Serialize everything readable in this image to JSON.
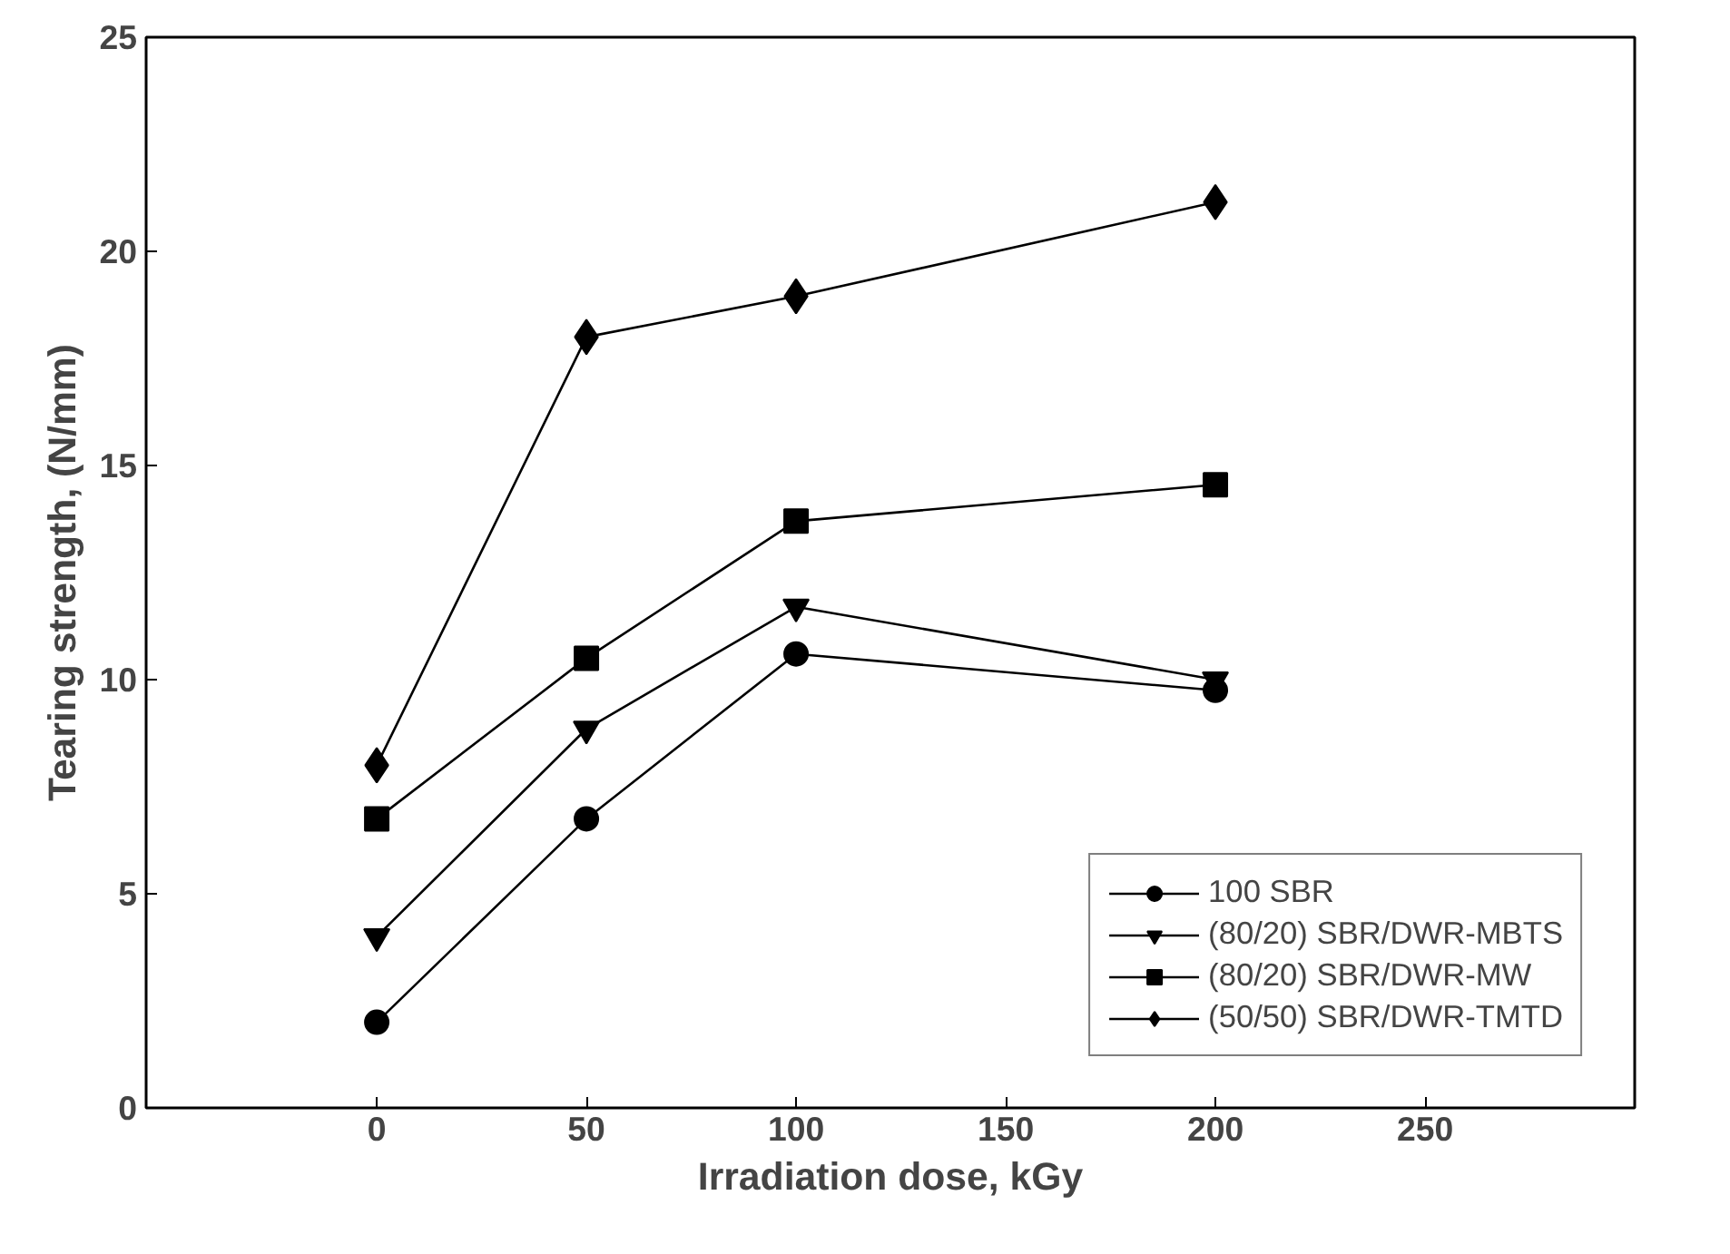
{
  "chart_data": {
    "type": "line",
    "xlabel": "Irradiation dose, kGy",
    "ylabel": "Tearing strength, (N/mm)",
    "x": [
      0,
      50,
      100,
      200
    ],
    "series": [
      {
        "name": "100 SBR",
        "color": "#000000",
        "marker": "circle",
        "values": [
          2.0,
          6.75,
          10.6,
          9.75
        ]
      },
      {
        "name": "(80/20) SBR/DWR-MBTS",
        "color": "#000000",
        "marker": "triangle",
        "values": [
          4.0,
          8.85,
          11.7,
          10.0
        ]
      },
      {
        "name": "(80/20) SBR/DWR-MW",
        "color": "#000000",
        "marker": "square",
        "values": [
          6.75,
          10.5,
          13.7,
          14.55
        ]
      },
      {
        "name": "(50/50) SBR/DWR-TMTD",
        "color": "#000000",
        "marker": "diamond",
        "values": [
          8.0,
          18.0,
          18.95,
          21.15
        ]
      }
    ],
    "xlim": [
      -55,
      300
    ],
    "ylim": [
      0,
      25
    ],
    "xticks": [
      0,
      50,
      100,
      150,
      200,
      250
    ],
    "yticks": [
      0,
      5,
      10,
      15,
      20,
      25
    ],
    "grid": false,
    "legend": "bottom right",
    "line_style": "solid"
  }
}
